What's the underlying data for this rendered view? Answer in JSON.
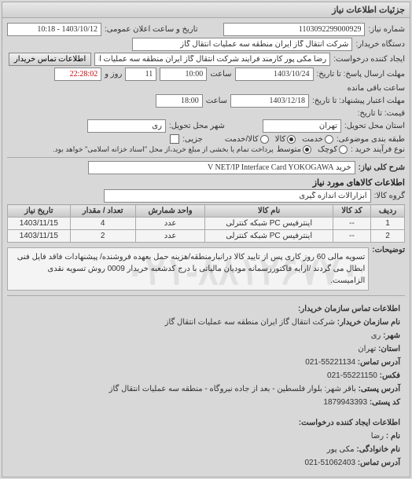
{
  "header": {
    "title": "جزئیات اطلاعات نیاز"
  },
  "form": {
    "req_no_label": "شماره نیاز:",
    "req_no": "1103092299000929",
    "announce_label": "تاریخ و ساعت اعلان عمومی:",
    "announce": "1403/10/12 - 10:18",
    "buyer_label": "دستگاه خریدار:",
    "buyer": "شرکت انتقال گاز ایران منطقه سه عملیات انتقال گاز",
    "creator_label": "ایجاد کننده درخواست:",
    "creator": "رضا مکی پور کارمند فرایند شرکت انتقال گاز ایران منطقه سه عملیات انتقال گاز",
    "contact_btn": "اطلاعات تماس خریدار",
    "deadline_label": "مهلت ارسال پاسخ: تا تاریخ:",
    "deadline_date": "1403/10/24",
    "time_label": "ساعت",
    "deadline_time": "10:00",
    "days": "11",
    "days_label": "روز و",
    "countdown": "22:28:02",
    "remaining": "ساعت باقی مانده",
    "validity_label": "مهلت اعتبار پیشنهاد: تا تاریخ:",
    "validity_date": "1403/12/18",
    "validity_time": "18:00",
    "price_label": "قیمت: تا تاریخ:",
    "province_label": "استان محل تحویل:",
    "province": "تهران",
    "city_label": "شهر محل تحویل:",
    "city": "ری",
    "category_label": "طبقه بندی موضوعی:",
    "cat_service": "خدمت",
    "cat_goods": "کالا",
    "cat_both": "کالا/خدمت",
    "partial_label": "جزیی:",
    "process_label": "نوع فرآیند خرید :",
    "process_note": "پرداخت تمام یا بخشی از مبلغ خرید،از محل \"اسناد خزانه اسلامی\" خواهد بود.",
    "size_small": "کوچک",
    "size_medium": "متوسط"
  },
  "need": {
    "title_label": "شرح کلی نیاز:",
    "title": "خرید V NET/IP Interface Card YOKOGAWA"
  },
  "goods": {
    "section": "اطلاعات کالاهای مورد نیاز",
    "group_label": "گروه کالا:",
    "group": "ابزارآلات اندازه گیری",
    "columns": [
      "ردیف",
      "کد کالا",
      "نام کالا",
      "واحد شمارش",
      "تعداد / مقدار",
      "تاریخ نیاز"
    ],
    "rows": [
      [
        "1",
        "--",
        "اینترفیس PC شبکه کنترلی",
        "عدد",
        "4",
        "1403/11/15"
      ],
      [
        "2",
        "--",
        "اینترفیس PC شبکه کنترلی",
        "عدد",
        "2",
        "1403/11/15"
      ]
    ]
  },
  "desc": {
    "label": "توضیحات:",
    "text": "تسویه مالی 60 روز کاری پس از تایید کالا درانبارمنطقه/هزینه حمل بعهده فروشنده/ پیشنهادات فاقد فایل فنی ابطال می گردند /ارایه فاکتوررسمانه مودیان مالیاتی با درج کدشعبه خریدار 0009 روش تسویه نقدی الزامیست."
  },
  "watermark": "۰۲۱-۸۸۱۲۶۷۷۰",
  "contact_buyer": {
    "section": "اطلاعات تماس سازمان خریدار:",
    "org_label": "نام سازمان خریدار:",
    "org": "شرکت انتقال گاز ایران منطقه سه عملیات انتقال گاز",
    "city_label": "شهر:",
    "city": "ری",
    "province_label": "استان:",
    "province": "تهران",
    "phone_label": "آدرس تماس:",
    "phone": "55221134-021",
    "fax_label": "فکس:",
    "fax": "55221150-021",
    "addr_label": "آدرس پستی:",
    "addr": "باقر شهر: بلوار فلسطین - بعد از جاده نیروگاه - منطقه سه عملیات انتقال گاز",
    "post_label": "کد پستی:",
    "post": "1879943393"
  },
  "contact_creator": {
    "section": "اطلاعات ایجاد کننده درخواست:",
    "name_label": "نام :",
    "name": "رضا",
    "lname_label": "نام خانوادگی:",
    "lname": "مکی پور",
    "phone_label": "آدرس تماس:",
    "phone": "51062403-021"
  }
}
